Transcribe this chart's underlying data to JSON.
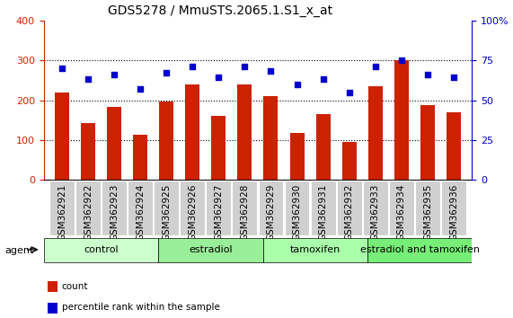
{
  "title": "GDS5278 / MmuSTS.2065.1.S1_x_at",
  "samples": [
    "GSM362921",
    "GSM362922",
    "GSM362923",
    "GSM362924",
    "GSM362925",
    "GSM362926",
    "GSM362927",
    "GSM362928",
    "GSM362929",
    "GSM362930",
    "GSM362931",
    "GSM362932",
    "GSM362933",
    "GSM362934",
    "GSM362935",
    "GSM362936"
  ],
  "counts": [
    220,
    142,
    182,
    112,
    196,
    240,
    160,
    240,
    210,
    118,
    166,
    95,
    236,
    300,
    188,
    170
  ],
  "percentiles": [
    70,
    63,
    66,
    57,
    67.5,
    71,
    64.5,
    71,
    68.5,
    60,
    63.5,
    55,
    71,
    75,
    66,
    64.5
  ],
  "groups": [
    {
      "label": "control",
      "start": 0,
      "end": 3,
      "color": "#ccffcc"
    },
    {
      "label": "estradiol",
      "start": 4,
      "end": 7,
      "color": "#99ee99"
    },
    {
      "label": "tamoxifen",
      "start": 8,
      "end": 11,
      "color": "#99ee99"
    },
    {
      "label": "estradiol and tamoxifen",
      "start": 12,
      "end": 15,
      "color": "#66dd66"
    }
  ],
  "bar_color": "#cc2200",
  "dot_color": "#0000cc",
  "ylim_left": [
    0,
    400
  ],
  "ylim_right": [
    0,
    100
  ],
  "yticks_left": [
    0,
    100,
    200,
    300,
    400
  ],
  "yticks_right": [
    0,
    25,
    50,
    75,
    100
  ],
  "bg_color": "#ffffff",
  "tick_color_left": "#cc2200",
  "tick_color_right": "#0000cc",
  "agent_label": "agent",
  "legend_count": "count",
  "legend_percentile": "percentile rank within the sample",
  "title_fontsize": 10,
  "axis_fontsize": 8,
  "label_fontsize": 7.5,
  "group_label_fontsize": 8
}
